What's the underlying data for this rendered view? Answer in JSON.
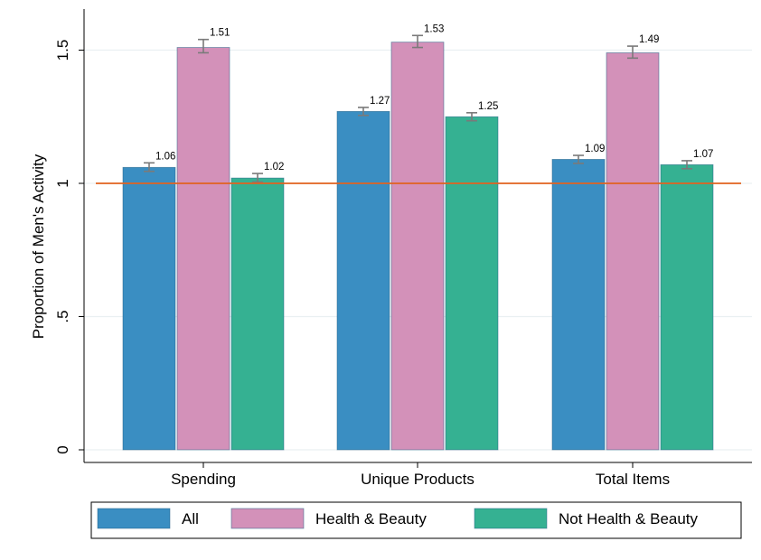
{
  "chart_data": {
    "type": "bar",
    "title": "",
    "xlabel": "",
    "ylabel": "Proportion of Men's Activity",
    "ylim": [
      0,
      1.6
    ],
    "yticks": [
      0,
      0.5,
      1,
      1.5
    ],
    "ytick_labels": [
      "0",
      ".5",
      "1",
      "1.5"
    ],
    "categories": [
      "Spending",
      "Unique Products",
      "Total Items"
    ],
    "series": [
      {
        "name": "All",
        "color": "#3a8ec2",
        "values": [
          1.06,
          1.27,
          1.09
        ],
        "labels": [
          "1.06",
          "1.27",
          "1.09"
        ],
        "err_low": [
          1.045,
          1.255,
          1.075
        ],
        "err_high": [
          1.077,
          1.285,
          1.105
        ]
      },
      {
        "name": "Health & Beauty",
        "color": "#d391b9",
        "values": [
          1.51,
          1.53,
          1.49
        ],
        "labels": [
          "1.51",
          "1.53",
          "1.49"
        ],
        "err_low": [
          1.49,
          1.51,
          1.47
        ],
        "err_high": [
          1.54,
          1.555,
          1.515
        ]
      },
      {
        "name": "Not Health & Beauty",
        "color": "#35b192",
        "values": [
          1.02,
          1.25,
          1.07
        ],
        "labels": [
          "1.02",
          "1.25",
          "1.07"
        ],
        "err_low": [
          1.005,
          1.235,
          1.055
        ],
        "err_high": [
          1.037,
          1.265,
          1.085
        ]
      }
    ],
    "reference_line": {
      "y": 1,
      "color": "#e2621f"
    },
    "grid": true,
    "legend": "bottom"
  }
}
